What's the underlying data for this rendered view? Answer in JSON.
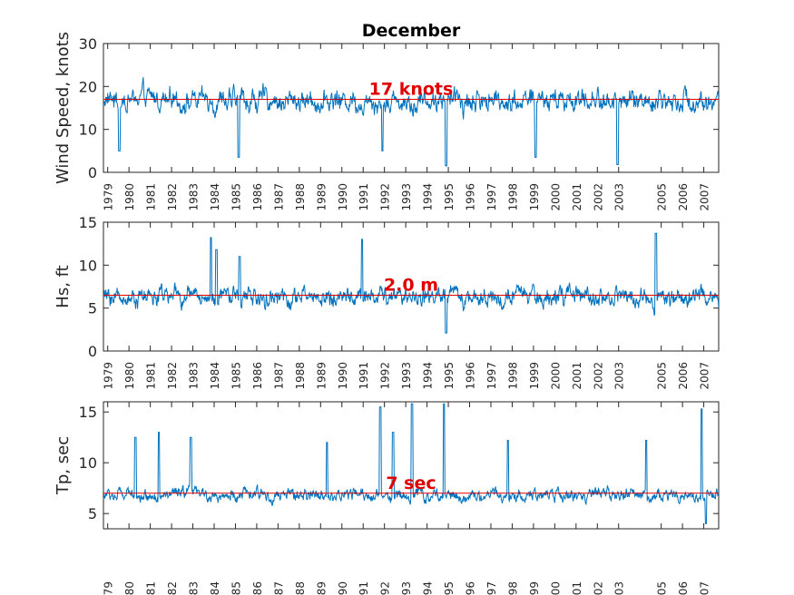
{
  "title": "December",
  "chart_data": [
    {
      "type": "line",
      "name": "wind-speed",
      "ylabel": "Wind Speed, knots",
      "ylim": [
        0,
        30
      ],
      "yticks": [
        0,
        10,
        20,
        30
      ],
      "mean": 17,
      "annotation": "17 knots",
      "series_color": "#0072bd",
      "mean_color": "#e00000",
      "x_range": [
        1978.8,
        2007.7
      ],
      "base": 16.8,
      "amp": 4.2,
      "floor": 0.5,
      "spikes": [
        [
          1985.15,
          3.5
        ],
        [
          1994.9,
          1.5
        ],
        [
          2002.95,
          1.8
        ],
        [
          1999.1,
          3.5
        ],
        [
          1979.55,
          5
        ],
        [
          1991.9,
          5
        ]
      ]
    },
    {
      "type": "line",
      "name": "wave-height",
      "ylabel": "Hs, ft",
      "ylim": [
        0,
        15
      ],
      "yticks": [
        0,
        5,
        10,
        15
      ],
      "mean": 6.5,
      "annotation": "2.0 m",
      "series_color": "#0072bd",
      "mean_color": "#e00000",
      "x_range": [
        1978.8,
        2007.7
      ],
      "base": 6.3,
      "amp": 1.8,
      "floor": 2,
      "spikes": [
        [
          1983.85,
          13.2
        ],
        [
          1990.95,
          13
        ],
        [
          2004.75,
          13.7
        ],
        [
          1984.1,
          11.8
        ],
        [
          1985.2,
          11
        ],
        [
          1994.9,
          2.1
        ]
      ]
    },
    {
      "type": "line",
      "name": "peak-period",
      "ylabel": "Tp, sec",
      "ylim": [
        3.5,
        16
      ],
      "yticks": [
        5,
        10,
        15
      ],
      "mean": 7,
      "annotation": "7 sec",
      "series_color": "#0072bd",
      "mean_color": "#e00000",
      "x_range": [
        1978.8,
        2007.7
      ],
      "base": 6.8,
      "amp": 1.0,
      "floor": 3.8,
      "spikes": [
        [
          1980.3,
          12.5
        ],
        [
          1981.4,
          13
        ],
        [
          1982.9,
          12.5
        ],
        [
          1991.8,
          15.5
        ],
        [
          1992.4,
          13
        ],
        [
          1993.3,
          15.8
        ],
        [
          1994.8,
          15.8
        ],
        [
          2006.9,
          15.3
        ],
        [
          1997.8,
          12.2
        ],
        [
          1989.3,
          12
        ],
        [
          2004.3,
          12.2
        ],
        [
          2007.1,
          4
        ]
      ]
    }
  ],
  "x_ticks": [
    1979,
    1980,
    1981,
    1982,
    1983,
    1984,
    1985,
    1986,
    1987,
    1988,
    1989,
    1990,
    1991,
    1992,
    1993,
    1994,
    1995,
    1996,
    1997,
    1998,
    1999,
    2000,
    2001,
    2002,
    2003,
    2005,
    2006,
    2007
  ],
  "x_tick_labels": [
    "1979",
    "1980",
    "1981",
    "1982",
    "1983",
    "1984",
    "1985",
    "1986",
    "1987",
    "1988",
    "1989",
    "1990",
    "1991",
    "1992",
    "1993",
    "1994",
    "1995",
    "1996",
    "1997",
    "1998",
    "1999",
    "2000",
    "2001",
    "2002",
    "2003",
    "2005",
    "2006",
    "2007"
  ]
}
